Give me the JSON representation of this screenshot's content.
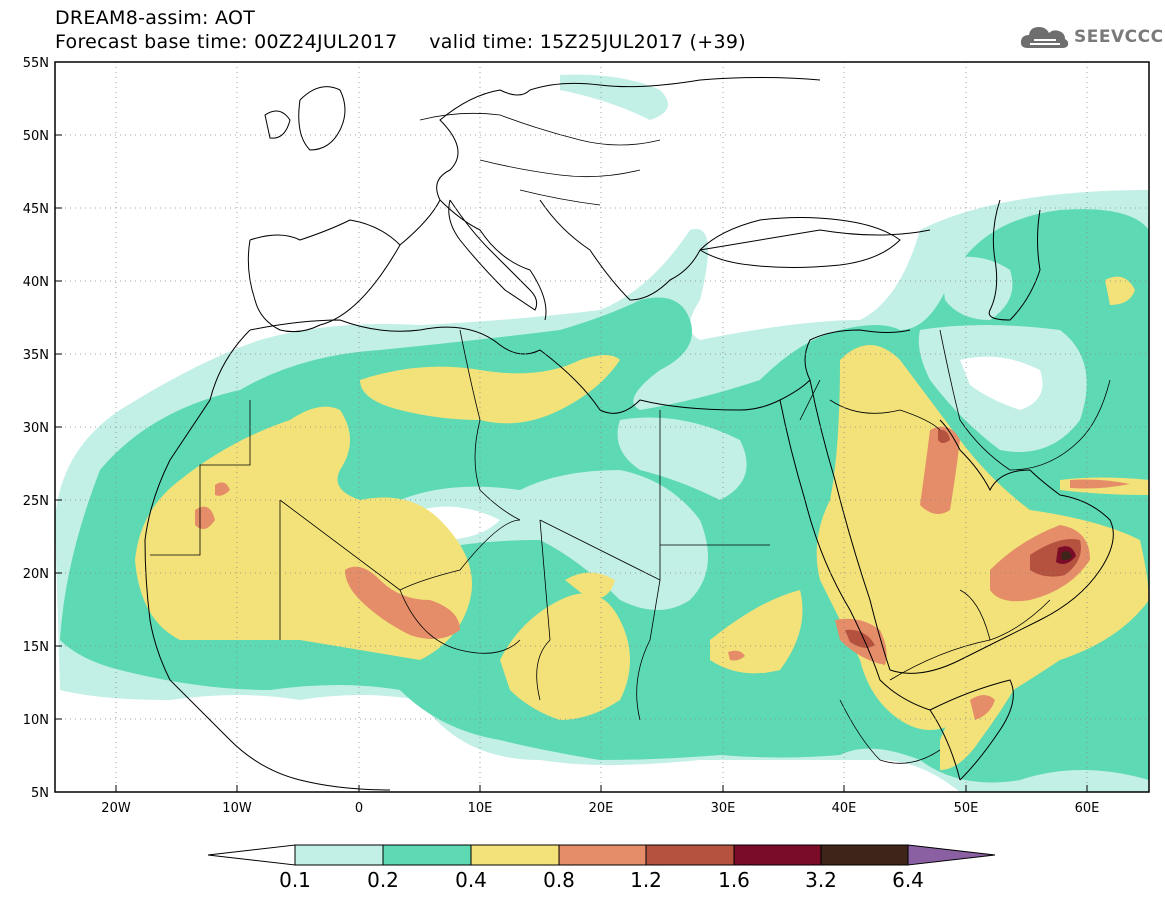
{
  "header": {
    "line1": "DREAM8-assim: AOT",
    "line2": "Forecast base time: 00Z24JUL2017     valid time: 15Z25JUL2017 (+39)"
  },
  "logo": {
    "text": "SEEVCCC",
    "icon": "cloud-icon"
  },
  "map": {
    "lon_range": [
      -25,
      65
    ],
    "lat_range": [
      5,
      55
    ],
    "x_ticks": [
      "20W",
      "10W",
      "0",
      "10E",
      "20E",
      "30E",
      "40E",
      "50E",
      "60E"
    ],
    "y_ticks": [
      "55N",
      "50N",
      "45N",
      "40N",
      "35N",
      "30N",
      "25N",
      "20N",
      "15N",
      "10N",
      "5N"
    ],
    "grid": "dotted"
  },
  "colorbar": {
    "levels": [
      "0.1",
      "0.2",
      "0.4",
      "0.8",
      "1.2",
      "1.6",
      "3.2",
      "6.4"
    ],
    "colors": [
      "#c2efe6",
      "#5dd9b3",
      "#f3e27a",
      "#e48d68",
      "#b5523f",
      "#7a0c27",
      "#3d2619",
      "#8a60a3"
    ],
    "under_color": "#ffffff",
    "over_color": "#8a60a3"
  }
}
